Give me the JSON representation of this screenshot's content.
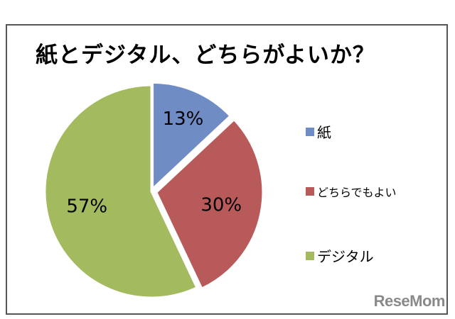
{
  "chart_data": {
    "type": "pie",
    "title": "紙とデジタル、どちらがよいか？",
    "slices": [
      {
        "label": "紙",
        "value": 13,
        "display": "13%",
        "color": "#6f8cc4"
      },
      {
        "label": "どちらでもよい",
        "value": 30,
        "display": "30%",
        "color": "#b85a5a"
      },
      {
        "label": "デジタル",
        "value": 57,
        "display": "57%",
        "color": "#a3bb5e"
      }
    ],
    "legend_position": "right",
    "data_labels": true
  },
  "watermark": "ReseMom"
}
